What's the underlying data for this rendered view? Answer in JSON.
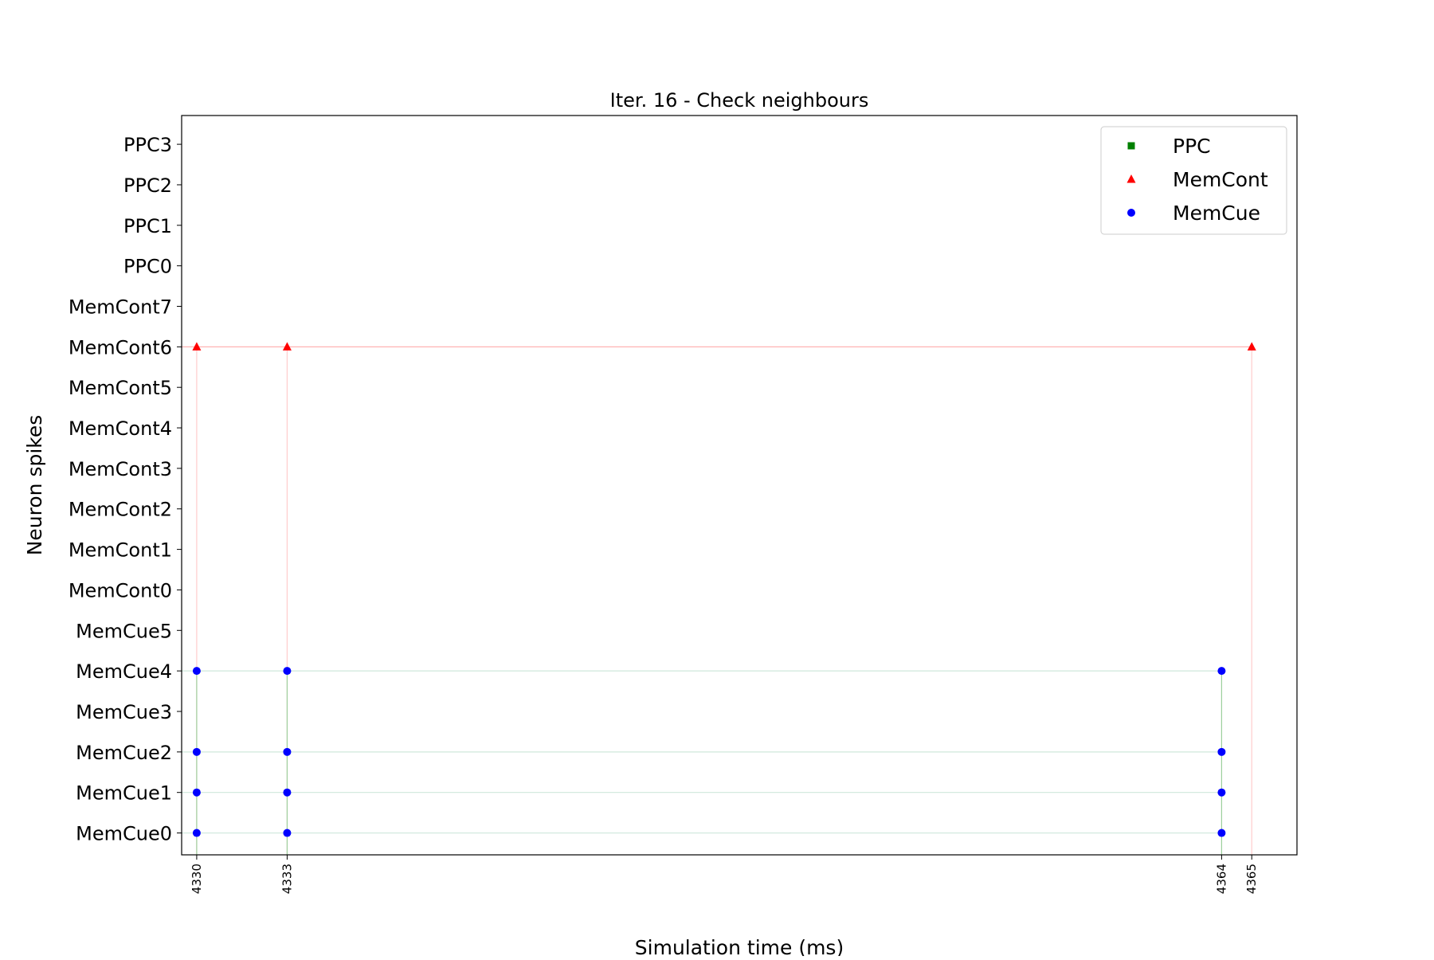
{
  "chart_data": {
    "type": "scatter",
    "title": "Iter. 16 - Check neighbours",
    "xlabel": "Simulation time (ms)",
    "ylabel": "Neuron spikes",
    "xlim": [
      4329.5,
      4366.5
    ],
    "x_ticks": [
      4330,
      4333,
      4364,
      4365
    ],
    "y_categories": [
      "MemCue0",
      "MemCue1",
      "MemCue2",
      "MemCue3",
      "MemCue4",
      "MemCue5",
      "MemCont0",
      "MemCont1",
      "MemCont2",
      "MemCont3",
      "MemCont4",
      "MemCont5",
      "MemCont6",
      "MemCont7",
      "PPC0",
      "PPC1",
      "PPC2",
      "PPC3"
    ],
    "legend_position": "top-right",
    "grid": false,
    "series": [
      {
        "name": "PPC",
        "marker": "square",
        "color": "#008000",
        "line_color": "#008000",
        "points": []
      },
      {
        "name": "MemCont",
        "marker": "triangle",
        "color": "#ff0000",
        "line_color": "#ff9999",
        "points": [
          {
            "x": 4330,
            "y": "MemCont6"
          },
          {
            "x": 4333,
            "y": "MemCont6"
          },
          {
            "x": 4365,
            "y": "MemCont6"
          }
        ]
      },
      {
        "name": "MemCue",
        "marker": "circle",
        "color": "#0000ff",
        "line_color": "#7fbf7f",
        "points": [
          {
            "x": 4330,
            "y": "MemCue0"
          },
          {
            "x": 4330,
            "y": "MemCue1"
          },
          {
            "x": 4330,
            "y": "MemCue2"
          },
          {
            "x": 4330,
            "y": "MemCue4"
          },
          {
            "x": 4333,
            "y": "MemCue0"
          },
          {
            "x": 4333,
            "y": "MemCue1"
          },
          {
            "x": 4333,
            "y": "MemCue2"
          },
          {
            "x": 4333,
            "y": "MemCue4"
          },
          {
            "x": 4364,
            "y": "MemCue0"
          },
          {
            "x": 4364,
            "y": "MemCue1"
          },
          {
            "x": 4364,
            "y": "MemCue2"
          },
          {
            "x": 4364,
            "y": "MemCue4"
          }
        ]
      }
    ]
  }
}
